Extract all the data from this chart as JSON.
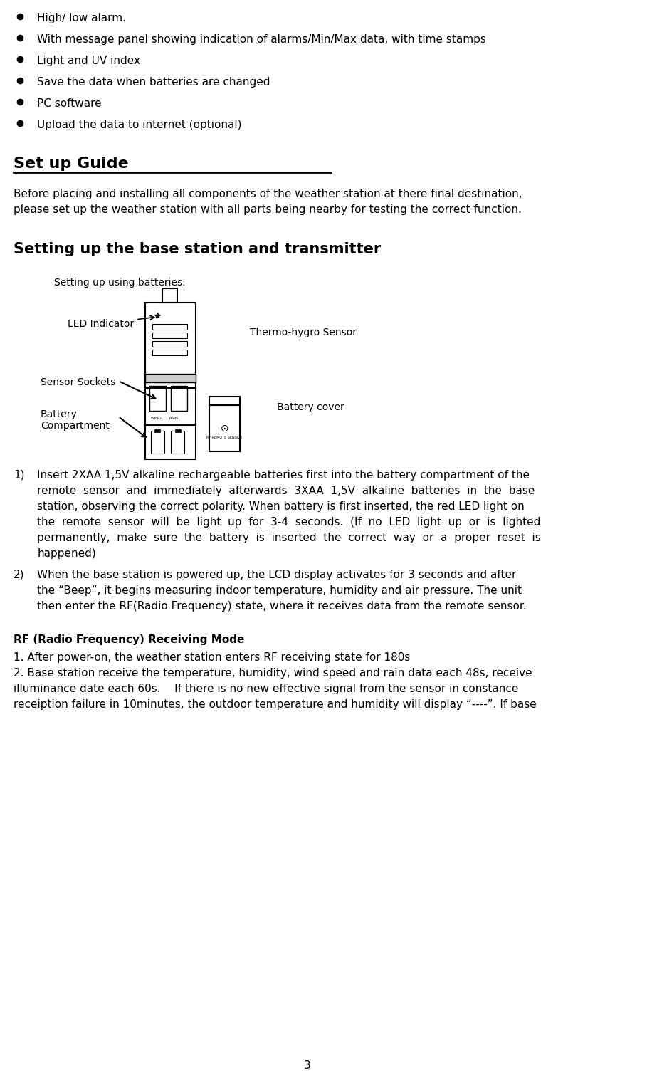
{
  "bg_color": "#ffffff",
  "bullet_items": [
    "High/ low alarm.",
    "With message panel showing indication of alarms/Min/Max data, with time stamps",
    "Light and UV index",
    "Save the data when batteries are changed",
    "PC software",
    "Upload the data to internet (optional)"
  ],
  "section1_title": "Set up Guide",
  "section1_body": "Before placing and installing all components of the weather station at there final destination,\nplease set up the weather station with all parts being nearby for testing the correct function.",
  "section2_title": "Setting up the base station and transmitter",
  "diagram_caption": "Setting up using batteries:",
  "label_led": "LED Indicator",
  "label_sensor_sockets": "Sensor Sockets",
  "label_battery_comp": "Battery\nCompartment",
  "label_battery_cover": "Battery cover",
  "label_thermo": "Thermo-hygro Sensor",
  "numbered_items": [
    "Insert 2XAA 1,5V alkaline rechargeable batteries first into the battery compartment of the remote  sensor  and  immediately  afterwards  3XAA  1,5V  alkaline  batteries  in  the  base station, observing the correct polarity. When battery is first inserted, the red LED light on the  remote  sensor  will  be  light  up  for  3-4  seconds.  (If  no  LED  light  up  or  is  lighted permanently,  make  sure  the  battery  is  inserted  the  correct  way  or  a  proper  reset  is happened)",
    "When the base station is powered up, the LCD display activates for 3 seconds and after the “Beep”, it begins measuring indoor temperature, humidity and air pressure. The unit then enter the RF(Radio Frequency) state, where it receives data from the remote sensor."
  ],
  "rf_title": "RF (Radio Frequency) Receiving Mode",
  "rf_items": [
    "1. After power-on, the weather station enters RF receiving state for 180s",
    "2. Base station receive the temperature, humidity, wind speed and rain data each 48s, receive illuminance date each 60s.    If there is no new effective signal from the sensor in constance receiption failure in 10minutes, the outdoor temperature and humidity will display “----”. If base"
  ],
  "page_number": "3"
}
